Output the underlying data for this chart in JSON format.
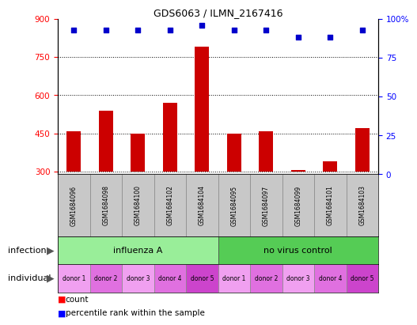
{
  "title": "GDS6063 / ILMN_2167416",
  "samples": [
    "GSM1684096",
    "GSM1684098",
    "GSM1684100",
    "GSM1684102",
    "GSM1684104",
    "GSM1684095",
    "GSM1684097",
    "GSM1684099",
    "GSM1684101",
    "GSM1684103"
  ],
  "counts": [
    460,
    540,
    450,
    570,
    790,
    450,
    460,
    305,
    340,
    470
  ],
  "percentiles": [
    93,
    93,
    93,
    93,
    96,
    93,
    93,
    88,
    88,
    93
  ],
  "infection_groups": [
    {
      "label": "influenza A",
      "start": 0,
      "end": 5,
      "color": "#99ee99"
    },
    {
      "label": "no virus control",
      "start": 5,
      "end": 10,
      "color": "#55cc55"
    }
  ],
  "individual_labels": [
    "donor 1",
    "donor 2",
    "donor 3",
    "donor 4",
    "donor 5",
    "donor 1",
    "donor 2",
    "donor 3",
    "donor 4",
    "donor 5"
  ],
  "individual_colors": [
    "#f0a0f0",
    "#e070e0",
    "#f0a0f0",
    "#e070e0",
    "#cc44cc",
    "#f0a0f0",
    "#e070e0",
    "#f0a0f0",
    "#e070e0",
    "#cc44cc"
  ],
  "ylim_left": [
    290,
    900
  ],
  "yticks_left": [
    300,
    450,
    600,
    750,
    900
  ],
  "ylim_right": [
    0,
    100
  ],
  "yticks_right": [
    0,
    25,
    50,
    75,
    100
  ],
  "bar_color": "#cc0000",
  "dot_color": "#0000cc",
  "bar_bottom": 300,
  "sample_bg": "#c8c8c8"
}
